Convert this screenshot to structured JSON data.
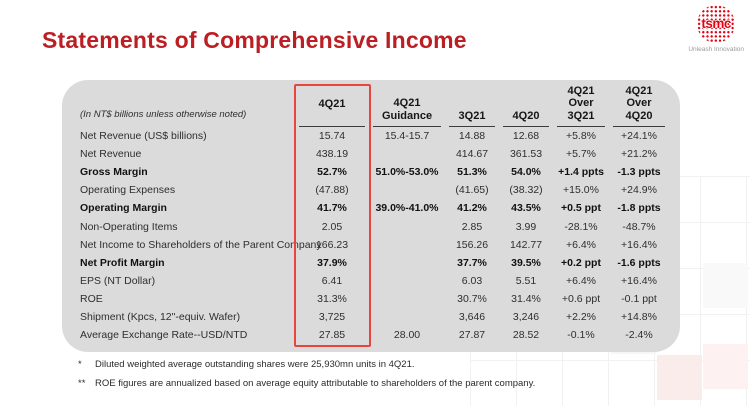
{
  "slide": {
    "title": "Statements of Comprehensive Income",
    "logo": {
      "brand": "tsmc",
      "tagline": "Unleash Innovation"
    }
  },
  "table": {
    "unit_note": "(In NT$ billions unless otherwise noted)",
    "highlighted_column": "4Q21",
    "columns": [
      {
        "id": "q4_21",
        "lines": [
          "4Q21"
        ],
        "highlighted": true
      },
      {
        "id": "guidance",
        "lines": [
          "4Q21",
          "Guidance"
        ]
      },
      {
        "id": "q3_21",
        "lines": [
          "3Q21"
        ]
      },
      {
        "id": "q4_20",
        "lines": [
          "4Q20"
        ]
      },
      {
        "id": "over_3q21",
        "lines": [
          "4Q21",
          "Over",
          "3Q21"
        ]
      },
      {
        "id": "over_4q20",
        "lines": [
          "4Q21",
          "Over",
          "4Q20"
        ]
      }
    ],
    "rows": [
      {
        "label": "Net Revenue (US$ billions)",
        "bold": false,
        "values": {
          "q4_21": "15.74",
          "guidance": "15.4-15.7",
          "q3_21": "14.88",
          "q4_20": "12.68",
          "over_3q21": "+5.8%",
          "over_4q20": "+24.1%"
        }
      },
      {
        "label": "Net Revenue",
        "bold": false,
        "values": {
          "q4_21": "438.19",
          "guidance": "",
          "q3_21": "414.67",
          "q4_20": "361.53",
          "over_3q21": "+5.7%",
          "over_4q20": "+21.2%"
        }
      },
      {
        "label": "Gross Margin",
        "bold": true,
        "values": {
          "q4_21": "52.7%",
          "guidance": "51.0%-53.0%",
          "q3_21": "51.3%",
          "q4_20": "54.0%",
          "over_3q21": "+1.4 ppts",
          "over_4q20": "-1.3 ppts"
        }
      },
      {
        "label": "Operating Expenses",
        "bold": false,
        "values": {
          "q4_21": "(47.88)",
          "guidance": "",
          "q3_21": "(41.65)",
          "q4_20": "(38.32)",
          "over_3q21": "+15.0%",
          "over_4q20": "+24.9%"
        }
      },
      {
        "label": "Operating Margin",
        "bold": true,
        "values": {
          "q4_21": "41.7%",
          "guidance": "39.0%-41.0%",
          "q3_21": "41.2%",
          "q4_20": "43.5%",
          "over_3q21": "+0.5 ppt",
          "over_4q20": "-1.8 ppts"
        }
      },
      {
        "label": "Non-Operating Items",
        "bold": false,
        "values": {
          "q4_21": "2.05",
          "guidance": "",
          "q3_21": "2.85",
          "q4_20": "3.99",
          "over_3q21": "-28.1%",
          "over_4q20": "-48.7%"
        }
      },
      {
        "label": "Net Income to Shareholders of the Parent Company",
        "bold": false,
        "values": {
          "q4_21": "166.23",
          "guidance": "",
          "q3_21": "156.26",
          "q4_20": "142.77",
          "over_3q21": "+6.4%",
          "over_4q20": "+16.4%"
        }
      },
      {
        "label": "Net Profit Margin",
        "bold": true,
        "values": {
          "q4_21": "37.9%",
          "guidance": "",
          "q3_21": "37.7%",
          "q4_20": "39.5%",
          "over_3q21": "+0.2 ppt",
          "over_4q20": "-1.6 ppts"
        }
      },
      {
        "label": "EPS (NT Dollar)",
        "bold": false,
        "values": {
          "q4_21": "6.41",
          "guidance": "",
          "q3_21": "6.03",
          "q4_20": "5.51",
          "over_3q21": "+6.4%",
          "over_4q20": "+16.4%"
        }
      },
      {
        "label": "ROE",
        "bold": false,
        "values": {
          "q4_21": "31.3%",
          "guidance": "",
          "q3_21": "30.7%",
          "q4_20": "31.4%",
          "over_3q21": "+0.6 ppt",
          "over_4q20": "-0.1 ppt"
        }
      },
      {
        "label": "Shipment (Kpcs, 12\"-equiv. Wafer)",
        "bold": false,
        "values": {
          "q4_21": "3,725",
          "guidance": "",
          "q3_21": "3,646",
          "q4_20": "3,246",
          "over_3q21": "+2.2%",
          "over_4q20": "+14.8%"
        }
      },
      {
        "label": "Average Exchange Rate--USD/NTD",
        "bold": false,
        "values": {
          "q4_21": "27.85",
          "guidance": "28.00",
          "q3_21": "27.87",
          "q4_20": "28.52",
          "over_3q21": "-0.1%",
          "over_4q20": "-2.4%"
        }
      }
    ]
  },
  "footnotes": [
    {
      "marker": "*",
      "text": "Diluted weighted average outstanding shares were 25,930mn units in 4Q21."
    },
    {
      "marker": "**",
      "text": "ROE figures are annualized based on average equity attributable to shareholders of the parent company."
    }
  ],
  "colors": {
    "title_red": "#BB1F24",
    "logo_red": "#E60012",
    "highlight_box_red": "#E8453C",
    "panel_gray": "#DBDBDB"
  }
}
